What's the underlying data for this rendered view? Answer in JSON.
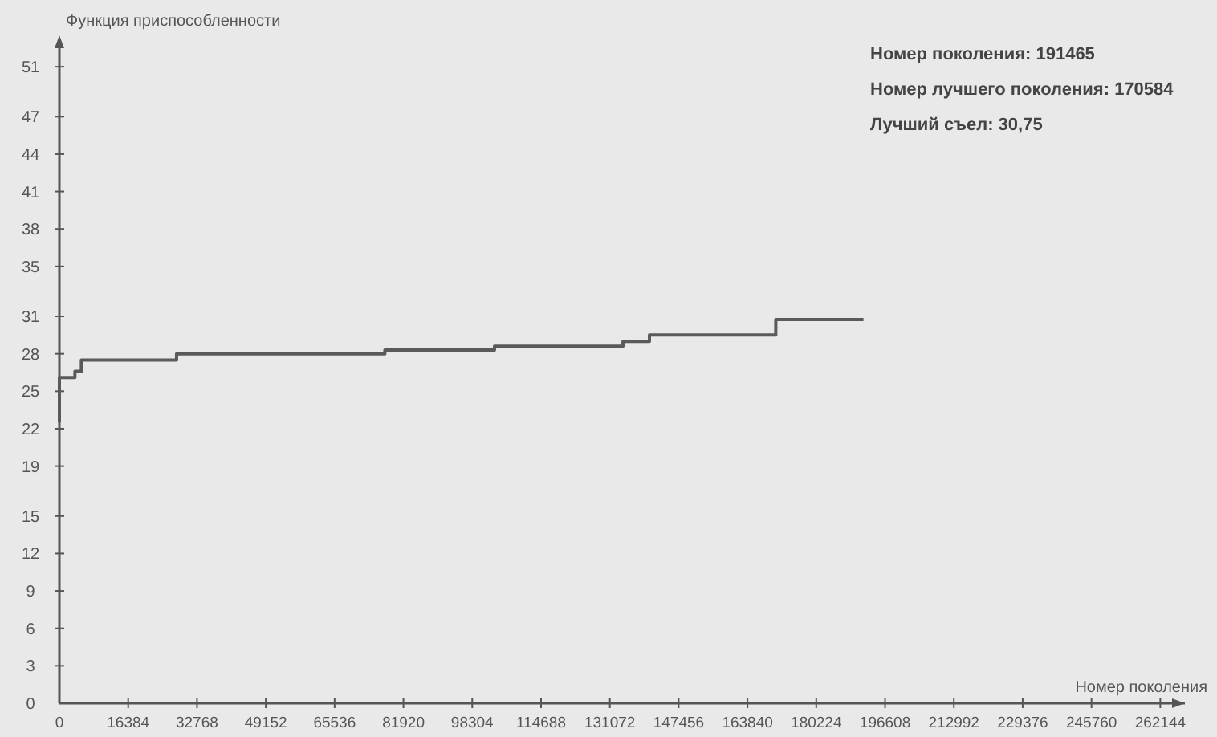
{
  "chart_data": {
    "type": "step",
    "ylabel": "Функция приспособленности",
    "xlabel": "Номер поколения",
    "annotations": [
      "Номер поколения: 191465",
      "Номер лучшего поколения: 170584",
      "Лучший съел: 30,75"
    ],
    "x": [
      0,
      0,
      3700,
      5230,
      27900,
      77500,
      103600,
      134200,
      140500,
      170584,
      191465
    ],
    "series": [
      {
        "color": "#5a5a5a",
        "values": [
          22.5,
          26.1,
          26.6,
          27.5,
          28.0,
          28.3,
          28.6,
          29.0,
          29.5,
          30.75,
          30.75
        ]
      }
    ],
    "xlim": [
      0,
      268000
    ],
    "ylim": [
      0,
      53
    ],
    "xticks": [
      0,
      16384,
      32768,
      49152,
      65536,
      81920,
      98304,
      114688,
      131072,
      147456,
      163840,
      180224,
      196608,
      212992,
      229376,
      245760,
      262144
    ],
    "yticks": [
      0,
      3,
      6,
      9,
      12,
      15,
      19,
      22,
      25,
      28,
      31,
      35,
      38,
      41,
      44,
      47,
      51
    ],
    "grid": false,
    "marker": "none",
    "line_style": "solid"
  }
}
